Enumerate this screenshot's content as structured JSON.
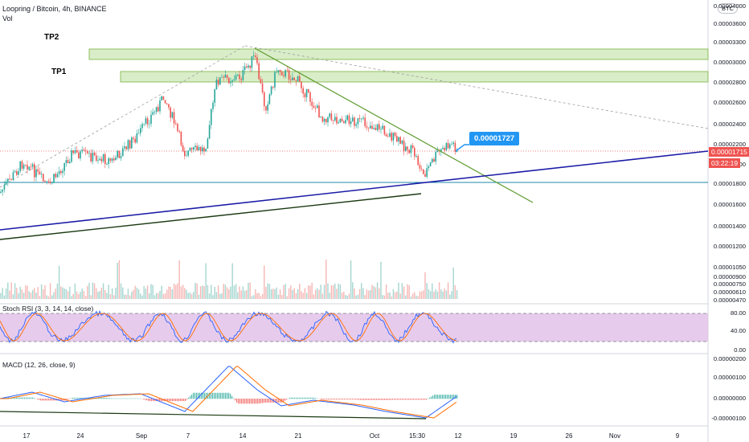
{
  "header": {
    "symbol": "Loopring / Bitcoin, 4h, BINANCE",
    "volume_label": "Vol"
  },
  "currency_badge": "BTC",
  "annotations": {
    "tp2": "TP2",
    "tp1": "TP1"
  },
  "price_callout": "0.00001727",
  "current_price_tag": "0.00001715",
  "countdown_tag": "03:22:19",
  "price_axis": {
    "labels": [
      "0.00004000",
      "0.00003600",
      "0.00003300",
      "0.00003000",
      "0.00002800",
      "0.00002600",
      "0.00002400",
      "0.00002200",
      "0.00002000",
      "0.00001800",
      "0.00001600",
      "0.00001400",
      "0.00001200",
      "0.00001050",
      "0.00000900",
      "0.00000750",
      "0.00000610",
      "0.00000470"
    ]
  },
  "stoch_rsi": {
    "title": "Stoch RSI (3, 3, 14, 14, close)",
    "axis_labels": [
      "80.00",
      "40.00",
      "0.00"
    ],
    "upper_band": 80,
    "lower_band": 20
  },
  "macd": {
    "title": "MACD (12, 26, close, 9)",
    "axis_labels": [
      "0.00000200",
      "0.00000100",
      "0.00000000",
      "-0.00000100"
    ]
  },
  "time_axis": {
    "labels": [
      "17",
      "24",
      "Sep",
      "7",
      "14",
      "21",
      "Oct",
      "15:30",
      "12",
      "19",
      "26",
      "Nov",
      "9"
    ]
  },
  "colors": {
    "up_candle": "#26a69a",
    "down_candle": "#ef5350",
    "tp_zone_fill": "#c8e6b0",
    "tp_zone_border": "#7cb342",
    "support_line": "#1a1aa6",
    "lower_trend_line": "#1b3a12",
    "resistance_line": "#5d9b2e",
    "horizontal_line": "#1e88a8",
    "stoch_band": "#e1bee7",
    "stoch_k": "#2962ff",
    "stoch_d": "#ff6d00",
    "macd_line": "#2962ff",
    "signal_line": "#ff6d00",
    "callout_bg": "#2196f3",
    "price_tag_bg": "#ef5350"
  }
}
